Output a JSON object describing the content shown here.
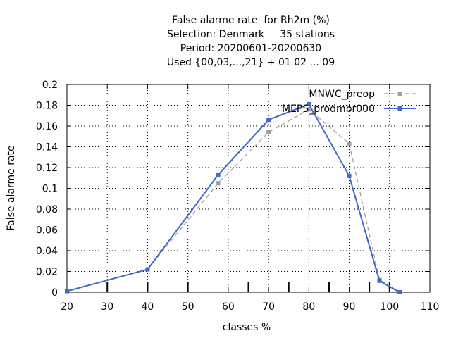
{
  "chart_data": {
    "type": "line",
    "title_lines": [
      "False alarme rate  for Rh2m (%)",
      "Selection: Denmark     35 stations",
      "Period: 20200601-20200630",
      "Used {00,03,...,21} + 01 02 ... 09"
    ],
    "xlabel": "classes %",
    "ylabel": "False alarme rate",
    "xlim": [
      20,
      110
    ],
    "ylim": [
      0,
      0.2
    ],
    "xticks": [
      20,
      30,
      40,
      50,
      60,
      70,
      80,
      90,
      100,
      110
    ],
    "xtick_labels": [
      "20",
      "30",
      "40",
      "50",
      "60",
      "70",
      "80",
      "90",
      "100",
      "110"
    ],
    "yticks": [
      0,
      0.02,
      0.04,
      0.06,
      0.08,
      0.1,
      0.12,
      0.14,
      0.16,
      0.18,
      0.2
    ],
    "ytick_labels": [
      "0",
      "0.02",
      "0.04",
      "0.06",
      "0.08",
      "0.1",
      "0.12",
      "0.14",
      "0.16",
      "0.18",
      "0.2"
    ],
    "grid": true,
    "legend_position": "top-right",
    "class_bounds": [
      30,
      40,
      50,
      65,
      75,
      85,
      95,
      100
    ],
    "series": [
      {
        "name": "MNWC_preop",
        "color": "#a0a0a0",
        "style": "dashed",
        "x": [
          20,
          40,
          57.5,
          70,
          80,
          90,
          97.5,
          102.5
        ],
        "y": [
          0.001,
          0.022,
          0.105,
          0.154,
          0.176,
          0.143,
          0.012,
          0.0
        ]
      },
      {
        "name": "MEPS_prodmbr000",
        "color": "#4169c9",
        "style": "solid",
        "x": [
          20,
          40,
          57.5,
          70,
          80,
          90,
          97.5,
          102.5
        ],
        "y": [
          0.001,
          0.022,
          0.113,
          0.166,
          0.181,
          0.112,
          0.011,
          0.0
        ]
      }
    ]
  }
}
